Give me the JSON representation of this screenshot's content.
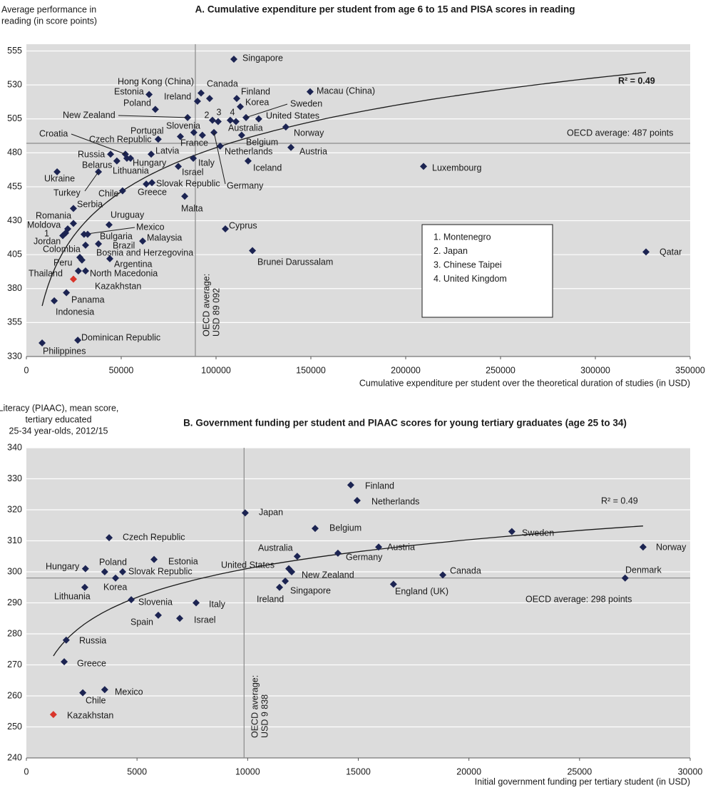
{
  "chart_data": [
    {
      "type": "scatter",
      "title": "A. Cumulative expenditure per student from age 6 to 15 and PISA scores in reading",
      "ylabel": [
        "Average performance in",
        "reading (in score points)"
      ],
      "xlabel": "Cumulative expenditure per student over the theoretical duration of studies (in USD)",
      "labels": [
        "Singapore",
        "Hong Kong (China)",
        "Canada",
        "Estonia",
        "Ireland",
        "Poland",
        "Finland",
        "Korea",
        "Macau (China)",
        "Sweden",
        "United States",
        "New Zealand",
        "2",
        "3",
        "4",
        "Australia",
        "Slovenia",
        "Portugal",
        "France",
        "Croatia",
        "Czech Republic",
        "Belgium",
        "Norway",
        "Netherlands",
        "Austria",
        "Iceland",
        "Russia",
        "Hungary",
        "Latvia",
        "Belarus",
        "Lithuania",
        "Ukraine",
        "Turkey",
        "Italy",
        "Israel",
        "Germany",
        "Chile",
        "Greece",
        "Slovak Republic",
        "Malta",
        "Serbia",
        "Luxembourg",
        "Cyprus",
        "Uruguay",
        "Romania",
        "Moldova",
        "1",
        "Jordan",
        "Mexico",
        "Bulgaria",
        "Malaysia",
        "Brazil",
        "Colombia",
        "Bosnia and Herzegovina",
        "Argentina",
        "Peru",
        "Thailand",
        "North Macedonia",
        "Brunei Darussalam",
        "Qatar",
        "Kazakhstan",
        "Panama",
        "Indonesia",
        "Dominican Republic",
        "Philippines"
      ],
      "x": [
        109400,
        92100,
        96600,
        64700,
        90200,
        68000,
        110900,
        112800,
        149600,
        115800,
        122500,
        85000,
        98100,
        101100,
        107500,
        110500,
        88300,
        81200,
        92800,
        52200,
        69500,
        113500,
        136800,
        102200,
        139500,
        116900,
        44400,
        54900,
        65800,
        47700,
        53000,
        16200,
        38000,
        88000,
        80100,
        98900,
        50700,
        63200,
        66200,
        83500,
        24800,
        209400,
        104900,
        43600,
        24800,
        21800,
        20700,
        19200,
        30400,
        32300,
        61300,
        38000,
        31200,
        28200,
        44000,
        29300,
        27400,
        31200,
        119200,
        326700,
        24800,
        21100,
        14700,
        27100,
        8300
      ],
      "values": [
        549,
        524,
        520,
        523,
        518,
        512,
        520,
        514,
        525,
        506,
        505,
        506,
        504,
        503,
        504,
        503,
        495,
        492,
        493,
        479,
        490,
        493,
        499,
        485,
        484,
        474,
        479,
        476,
        479,
        474,
        476,
        466,
        466,
        476,
        470,
        495,
        452,
        457,
        458,
        448,
        439,
        470,
        424,
        427,
        428,
        424,
        421,
        419,
        420,
        420,
        415,
        413,
        412,
        403,
        402,
        401,
        393,
        393,
        408,
        407,
        387,
        377,
        371,
        342,
        340
      ],
      "color": "#1c2452",
      "highlight": {
        "label": "Kazakhstan",
        "color": "#d9352b"
      },
      "xlim": [
        0,
        350000
      ],
      "ylim": [
        330,
        560
      ],
      "xticks": [
        0,
        50000,
        100000,
        150000,
        200000,
        250000,
        300000,
        350000
      ],
      "yticks": [
        330,
        355,
        380,
        405,
        430,
        455,
        480,
        505,
        530,
        555
      ],
      "grid": true,
      "ref_lines": {
        "x": 89092,
        "y": 487
      },
      "ref_x_text": [
        "OECD average:",
        "USD 89 092"
      ],
      "ref_y_text": "OECD average: 487 points",
      "trend": "log",
      "r2_text": "R² = 0.49",
      "notes": [
        "1. Montenegro",
        "2. Japan",
        "3. Chinese Taipei",
        "4. United Kingdom"
      ]
    },
    {
      "type": "scatter",
      "title": "B. Government funding per student and PIAAC scores for young tertiary graduates (age 25 to 34)",
      "ylabel": [
        "Literacy (PIAAC), mean score,",
        "tertiary educated",
        "25-34 year-olds, 2012/15"
      ],
      "xlabel": "Initial government funding per tertiary student (in USD)",
      "labels": [
        "Finland",
        "Netherlands",
        "Japan",
        "Belgium",
        "Czech Republic",
        "Sweden",
        "Australia",
        "Germany",
        "Austria",
        "Norway",
        "Estonia",
        "Hungary",
        "Poland",
        "Slovak Republic",
        "Korea",
        "United States",
        "New Zealand",
        "Singapore",
        "Ireland",
        "Canada",
        "Denmark",
        "England (UK)",
        "Lithuania",
        "Slovenia",
        "Italy",
        "Spain",
        "Israel",
        "Russia",
        "Greece",
        "Chile",
        "Mexico",
        "Kazakhstan"
      ],
      "x": [
        14660,
        14950,
        9890,
        13050,
        3740,
        21940,
        12240,
        14080,
        15920,
        27870,
        5770,
        2670,
        3540,
        4350,
        4030,
        11860,
        11990,
        11700,
        11440,
        18820,
        27060,
        16590,
        2640,
        4740,
        7670,
        5960,
        6930,
        1800,
        1710,
        2550,
        3540,
        1220
      ],
      "values": [
        328,
        323,
        319,
        314,
        311,
        313,
        305,
        306,
        308,
        308,
        304,
        301,
        300,
        300,
        298,
        301,
        300,
        297,
        295,
        299,
        298,
        296,
        295,
        291,
        290,
        286,
        285,
        278,
        271,
        261,
        262,
        254
      ],
      "color": "#1c2452",
      "highlight": {
        "label": "Kazakhstan",
        "color": "#d9352b"
      },
      "xlim": [
        0,
        30000
      ],
      "ylim": [
        240,
        340
      ],
      "xticks": [
        0,
        5000,
        10000,
        15000,
        20000,
        25000,
        30000
      ],
      "yticks": [
        240,
        250,
        260,
        270,
        280,
        290,
        300,
        310,
        320,
        330,
        340
      ],
      "grid": true,
      "ref_lines": {
        "x": 9838,
        "y": 298
      },
      "ref_x_text": [
        "OECD average:",
        "USD 9 838"
      ],
      "ref_y_text": "OECD average: 298 points",
      "trend": "log",
      "r2_text": "R² = 0.49"
    }
  ]
}
